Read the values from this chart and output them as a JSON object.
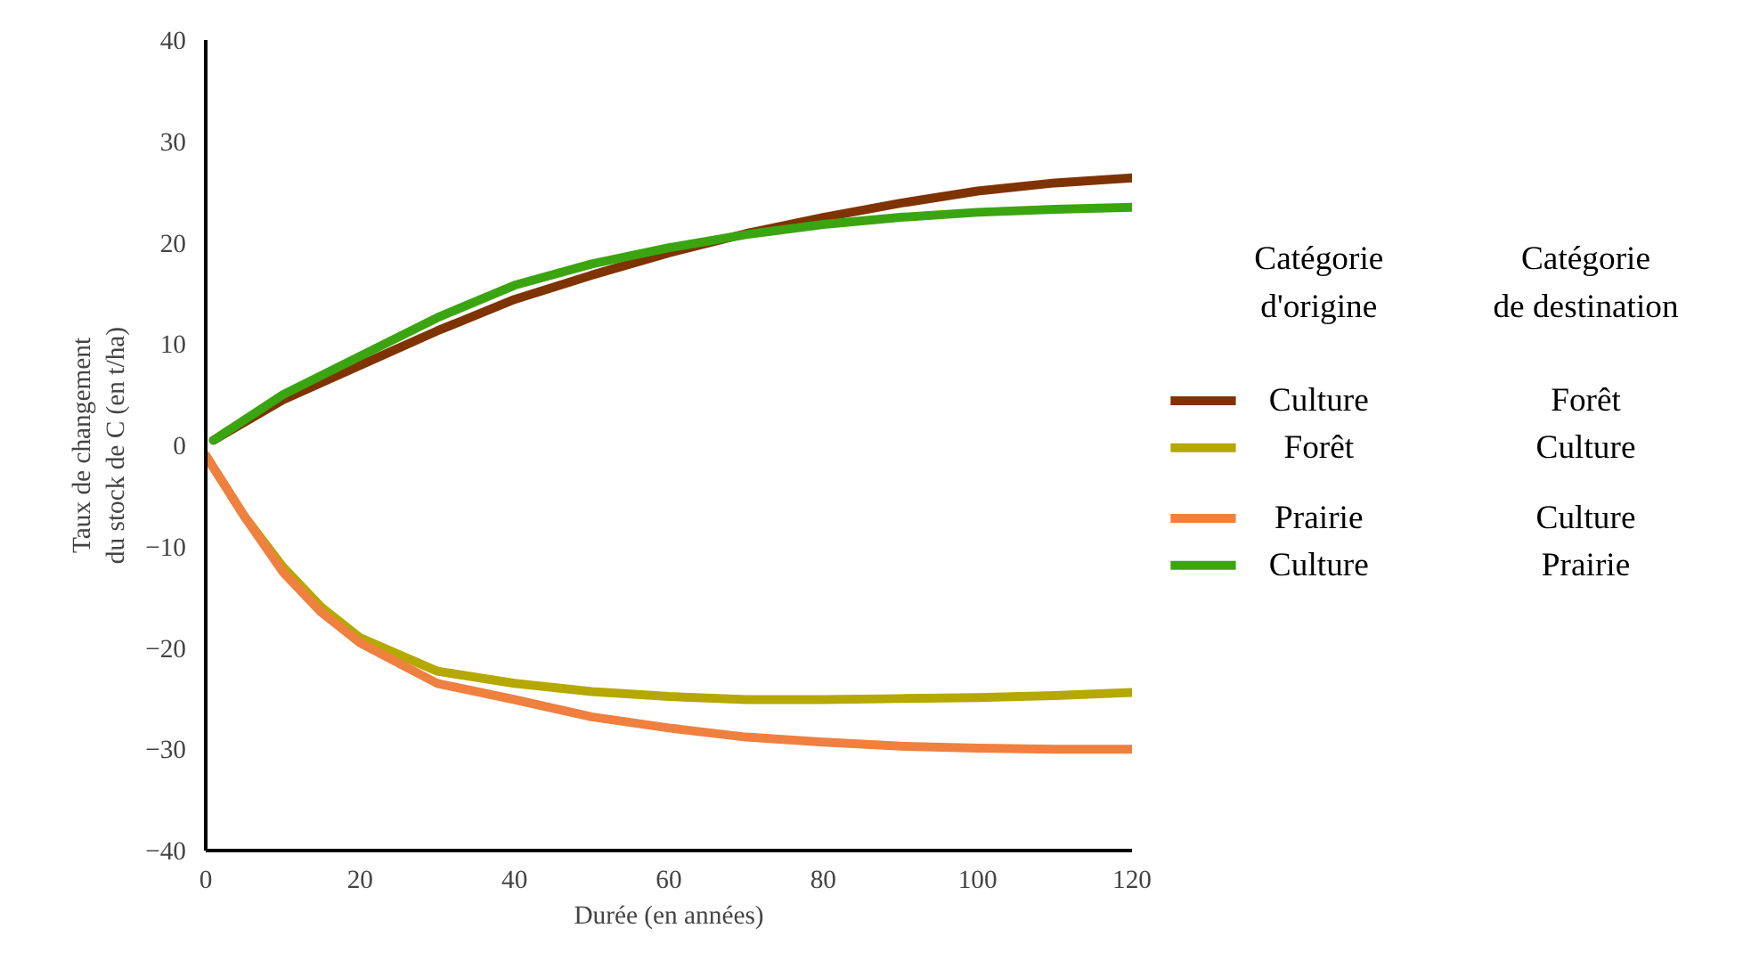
{
  "chart_data": {
    "type": "line",
    "xlabel": "Durée (en années)",
    "ylabel": "Taux de changement\ndu stock de C (en t/ha)",
    "xlim": [
      0,
      120
    ],
    "ylim": [
      -40,
      40
    ],
    "xticks": [
      0,
      20,
      40,
      60,
      80,
      100,
      120
    ],
    "yticks": [
      -40,
      -30,
      -20,
      -10,
      0,
      10,
      20,
      30,
      40
    ],
    "grid": false,
    "legend": "right",
    "legend_title": "Catégorie\nd'origine",
    "marker": "none",
    "line_style": "solid",
    "annotations": [
      "Catégorie\nde destination",
      "Forêt",
      "Culture",
      "Culture",
      "Prairie"
    ],
    "series": [
      {
        "name": "Culture",
        "color": "#7f3300",
        "x": [
          1,
          10,
          20,
          30,
          40,
          50,
          60,
          70,
          80,
          90,
          100,
          110,
          120
        ],
        "values": [
          0.5,
          4.5,
          7.9,
          11.3,
          14.4,
          16.8,
          19.0,
          20.9,
          22.5,
          23.9,
          25.1,
          25.9,
          26.4
        ]
      },
      {
        "name": "Forêt",
        "color": "#b5a800",
        "x": [
          0,
          5,
          10,
          15,
          20,
          30,
          40,
          50,
          60,
          70,
          80,
          90,
          100,
          110,
          120
        ],
        "values": [
          -1,
          -7,
          -12,
          -16,
          -19,
          -22.3,
          -23.5,
          -24.3,
          -24.8,
          -25.1,
          -25.1,
          -25,
          -24.9,
          -24.7,
          -24.4
        ]
      },
      {
        "name": "Prairie",
        "color": "#ef8040",
        "x": [
          0,
          5,
          10,
          15,
          20,
          30,
          40,
          50,
          60,
          70,
          80,
          90,
          100,
          110,
          120
        ],
        "values": [
          -1,
          -7,
          -12.5,
          -16.5,
          -19.5,
          -23.5,
          -25.1,
          -26.8,
          -27.9,
          -28.8,
          -29.3,
          -29.7,
          -29.9,
          -30,
          -30
        ]
      },
      {
        "name": "Culture",
        "color": "#3aa510",
        "x": [
          1,
          10,
          20,
          30,
          40,
          50,
          60,
          70,
          80,
          90,
          100,
          110,
          120
        ],
        "values": [
          0.5,
          5,
          8.8,
          12.6,
          15.8,
          17.9,
          19.5,
          20.8,
          21.8,
          22.5,
          23,
          23.3,
          23.5
        ]
      }
    ]
  }
}
